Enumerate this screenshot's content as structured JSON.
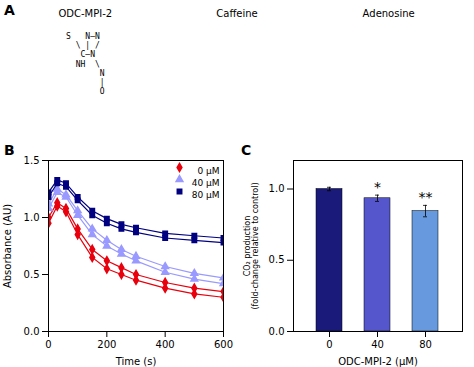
{
  "chart_data": [
    {
      "type": "text",
      "title": "A",
      "annotations": [
        "ODC-MPI-2",
        "Caffeine",
        "Adenosine",
        "S   N—N\n  \\ | /\n   C—N\n  NH  \\\n       N\n       |\n       O"
      ]
    },
    {
      "type": "line",
      "title": "B",
      "xlabel": "Time (s)",
      "ylabel": "Absorbance (AU)",
      "x": [
        0,
        30,
        60,
        100,
        150,
        200,
        250,
        300,
        400,
        500,
        600
      ],
      "series": [
        {
          "name": "0 μM",
          "color": "#e8000d",
          "marker": "diamond",
          "values": [
            0.95,
            1.1,
            1.05,
            0.85,
            0.65,
            0.55,
            0.5,
            0.45,
            0.38,
            0.33,
            0.3
          ]
        },
        {
          "name": "0 μM",
          "color": "#e8000d",
          "marker": "diamond",
          "values": [
            1.0,
            1.13,
            1.08,
            0.9,
            0.72,
            0.62,
            0.56,
            0.5,
            0.43,
            0.38,
            0.35
          ]
        },
        {
          "name": "40 μM",
          "color": "#9999ff",
          "marker": "triangle",
          "values": [
            1.08,
            1.22,
            1.18,
            1.02,
            0.85,
            0.75,
            0.68,
            0.62,
            0.52,
            0.46,
            0.42
          ]
        },
        {
          "name": "40 μM",
          "color": "#9999ff",
          "marker": "triangle",
          "values": [
            1.12,
            1.25,
            1.2,
            1.06,
            0.9,
            0.8,
            0.72,
            0.66,
            0.57,
            0.51,
            0.47
          ]
        },
        {
          "name": "80 μM",
          "color": "#000080",
          "marker": "square",
          "values": [
            1.18,
            1.3,
            1.27,
            1.15,
            1.02,
            0.95,
            0.9,
            0.87,
            0.82,
            0.8,
            0.78
          ]
        },
        {
          "name": "80 μM",
          "color": "#000080",
          "marker": "square",
          "values": [
            1.22,
            1.33,
            1.3,
            1.18,
            1.06,
            0.99,
            0.94,
            0.91,
            0.86,
            0.84,
            0.82
          ]
        }
      ],
      "xlim": [
        0,
        600
      ],
      "xticks": [
        0,
        200,
        400,
        600
      ],
      "ylim": [
        0.0,
        1.5
      ],
      "yticks": [
        {
          "value": 0.0,
          "label": "0.0"
        },
        0.5,
        {
          "value": 1.0,
          "label": "1.0"
        },
        1.5
      ],
      "legend": "upper right",
      "grid": false
    },
    {
      "type": "bar",
      "title": "C",
      "xlabel": "ODC-MPI-2 (μM)",
      "ylabel": "CO₂ production\n(fold-change relative to control)",
      "categories": [
        "0",
        "40",
        "80"
      ],
      "values": [
        1.0,
        0.935,
        0.845
      ],
      "errors": [
        0.012,
        0.022,
        0.04
      ],
      "colors": [
        "#1a1a7a",
        "#5555cc",
        "#6699dd"
      ],
      "annotations": [
        null,
        "*",
        "**"
      ],
      "ylim": [
        0.0,
        1.2
      ],
      "yticks": [
        {
          "value": 0.0,
          "label": "0.0"
        },
        0.5,
        {
          "value": 1.0,
          "label": "1.0"
        }
      ],
      "grid": false
    }
  ]
}
